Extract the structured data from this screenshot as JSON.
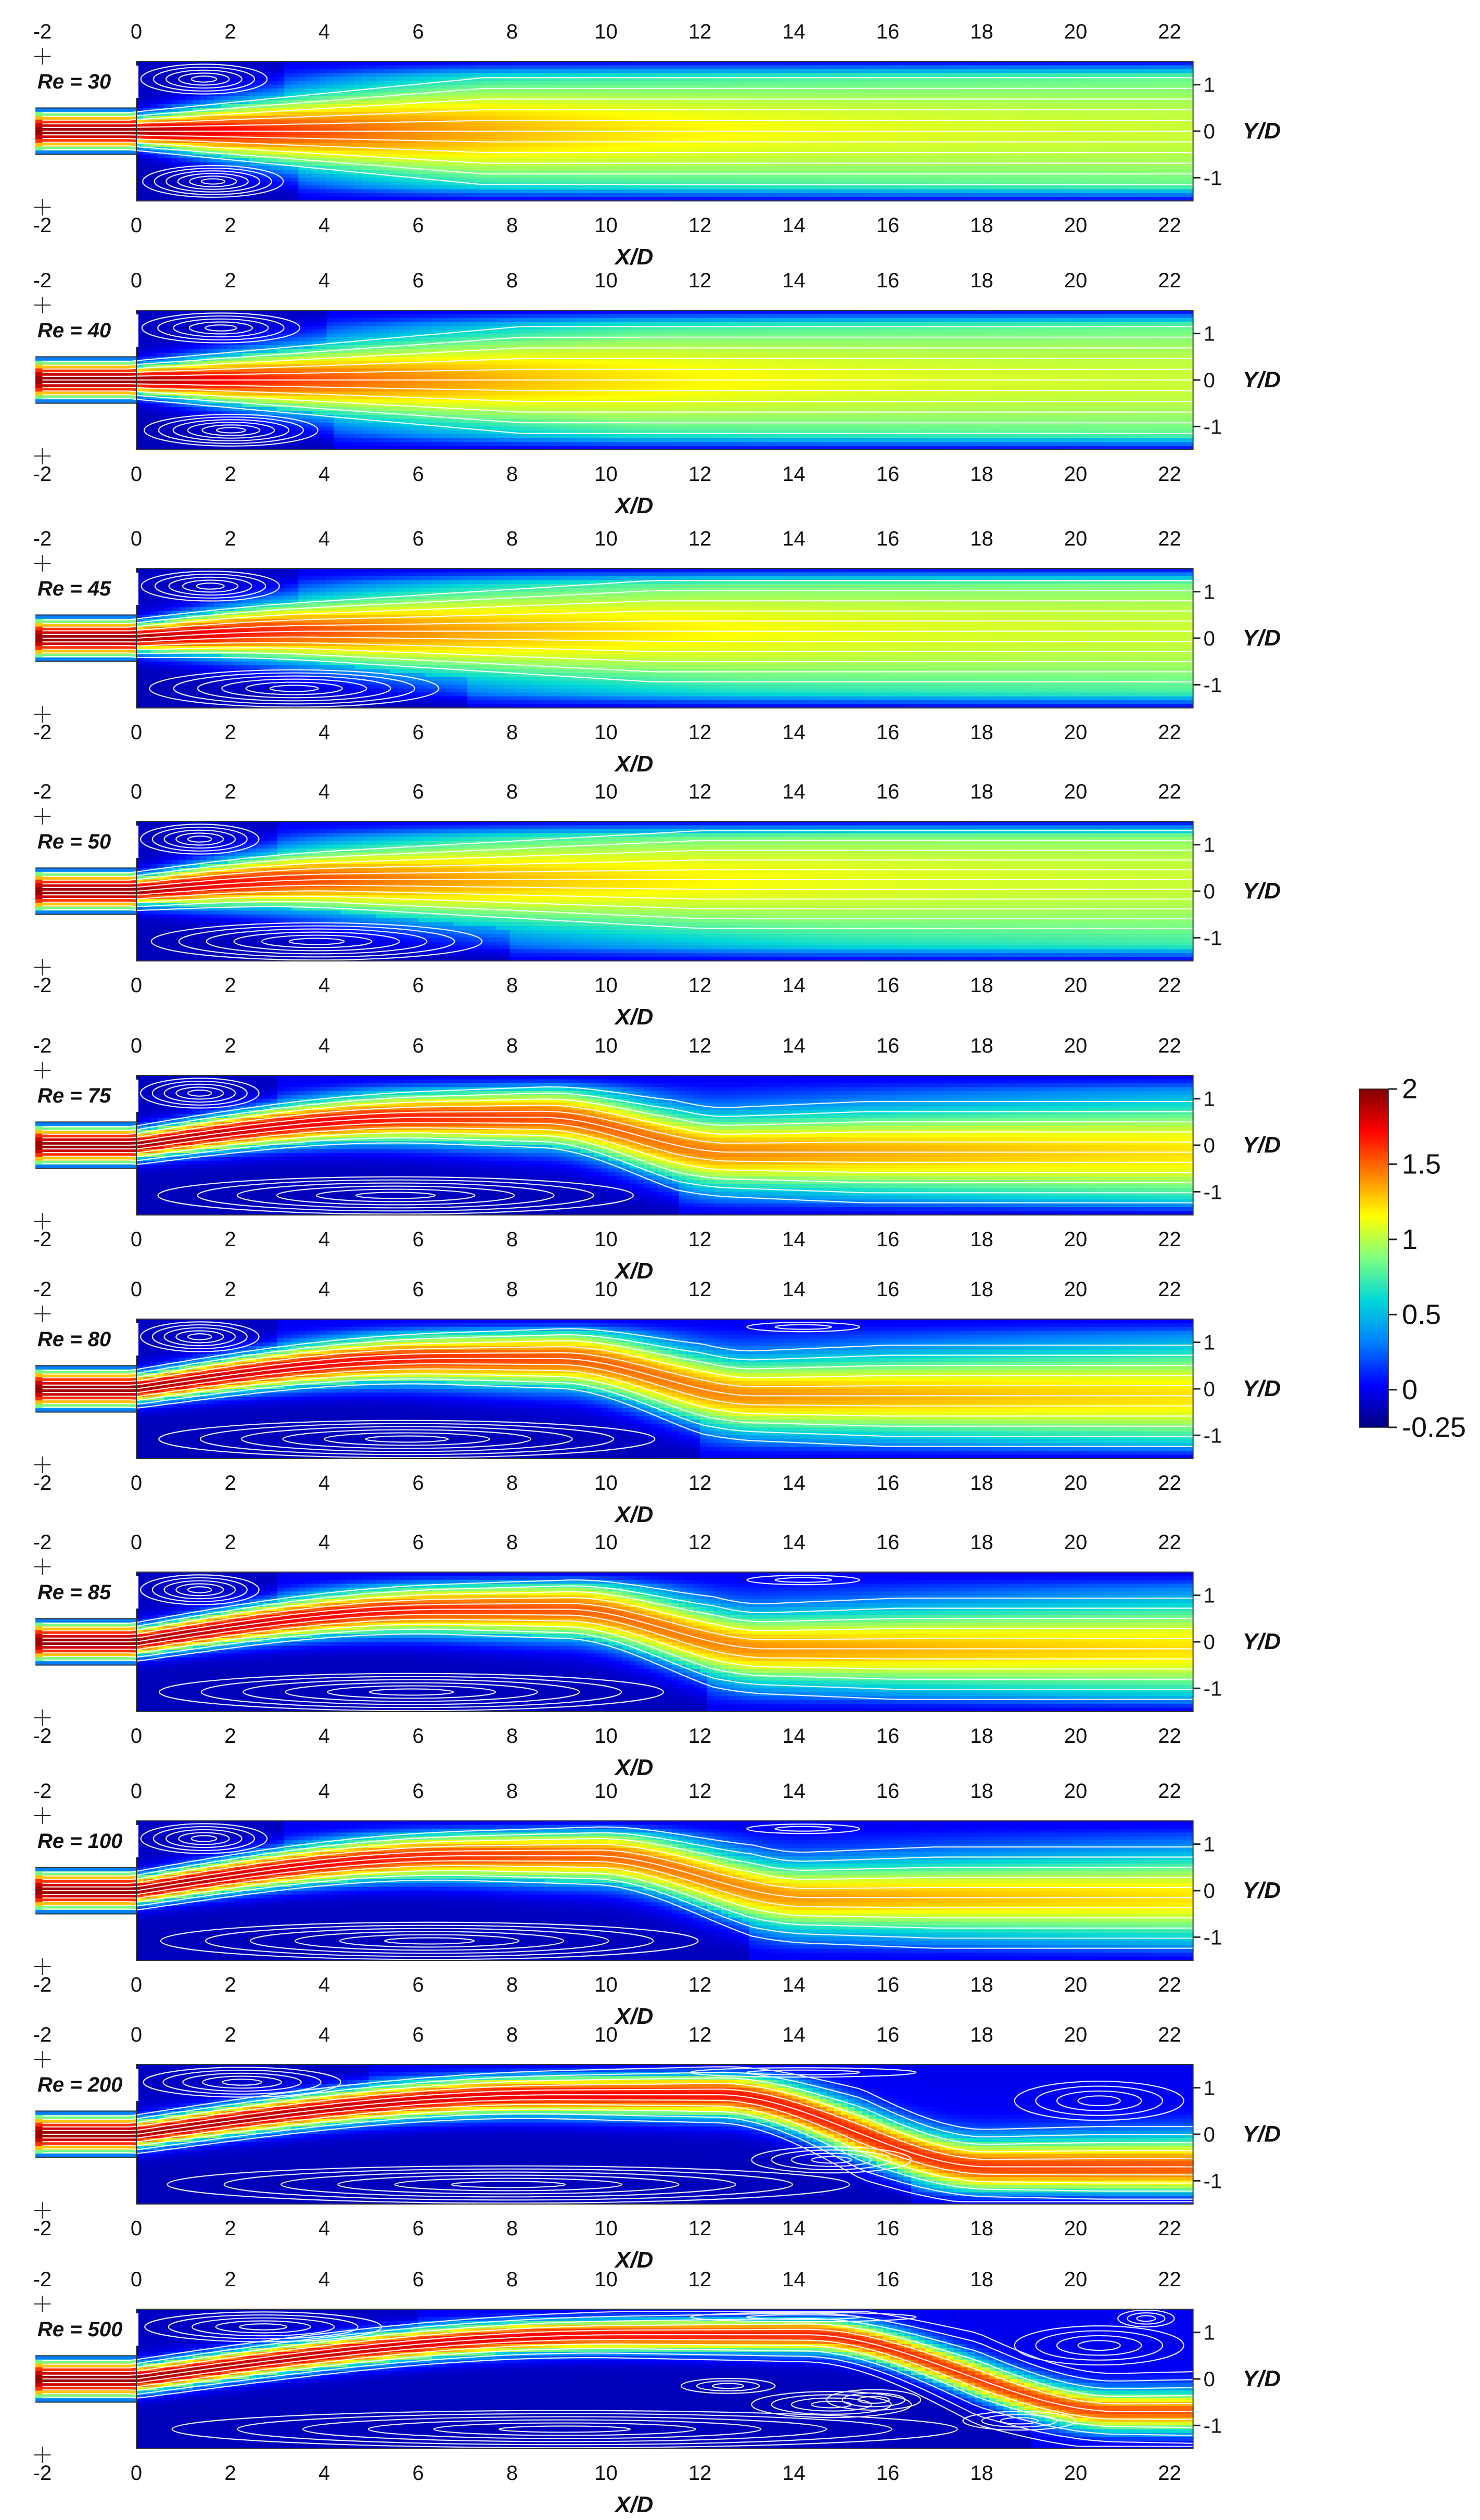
{
  "chart_data": {
    "type": "heatmap",
    "title": "",
    "description_quantity": "streamwise velocity contours with streamlines",
    "xlabel": "X/D",
    "ylabel": "Y/D",
    "x_range": [
      -2,
      22.5
    ],
    "x_ticks": [
      -2,
      0,
      2,
      4,
      6,
      8,
      10,
      12,
      14,
      16,
      18,
      20,
      22
    ],
    "x_tick_labels": [
      "-2",
      "0",
      "2",
      "4",
      "6",
      "8",
      "10",
      "12",
      "14",
      "16",
      "18",
      "20",
      "22"
    ],
    "y_range": [
      -1.5,
      1.5
    ],
    "inlet_range": [
      -0.5,
      0.5
    ],
    "y_ticks": [
      1,
      0,
      -1
    ],
    "y_tick_labels": [
      "1",
      "0",
      "-1"
    ],
    "colorbar": {
      "min": -0.25,
      "max": 2,
      "ticks": [
        2,
        1.5,
        1,
        0.5,
        0,
        -0.25
      ],
      "tick_labels": [
        "2",
        "1.5",
        "1",
        "0.5",
        "0",
        "-0.25"
      ],
      "colormap": [
        "#00007f",
        "#0000ff",
        "#007fff",
        "#00d8d8",
        "#7fff7f",
        "#ffff00",
        "#ff7f00",
        "#ff0000",
        "#7f0000"
      ]
    },
    "panels": [
      {
        "label": "Re = 30",
        "Re": 30,
        "jet_peak": 1.5,
        "top_recirculation_end": 3.2,
        "bottom_recirculation_end": 3.4,
        "jet_deflection": 0.0
      },
      {
        "label": "Re = 40",
        "Re": 40,
        "jet_peak": 1.5,
        "top_recirculation_end": 4.0,
        "bottom_recirculation_end": 4.2,
        "jet_deflection": 0.0
      },
      {
        "label": "Re = 45",
        "Re": 45,
        "jet_peak": 1.5,
        "top_recirculation_end": 3.5,
        "bottom_recirculation_end": 7.0,
        "jet_deflection": 0.15
      },
      {
        "label": "Re = 50",
        "Re": 50,
        "jet_peak": 1.5,
        "top_recirculation_end": 3.0,
        "bottom_recirculation_end": 8.0,
        "jet_deflection": 0.25
      },
      {
        "label": "Re = 75",
        "Re": 75,
        "jet_peak": 1.5,
        "top_recirculation_end": 3.0,
        "bottom_recirculation_end": 11.5,
        "jet_deflection": 0.6
      },
      {
        "label": "Re = 80",
        "Re": 80,
        "jet_peak": 1.5,
        "top_recirculation_end": 3.0,
        "bottom_recirculation_end": 12.0,
        "jet_deflection": 0.65
      },
      {
        "label": "Re = 85",
        "Re": 85,
        "jet_peak": 1.5,
        "top_recirculation_end": 3.0,
        "bottom_recirculation_end": 12.2,
        "jet_deflection": 0.7
      },
      {
        "label": "Re = 100",
        "Re": 100,
        "jet_peak": 1.5,
        "top_recirculation_end": 3.2,
        "bottom_recirculation_end": 13.0,
        "jet_deflection": 0.75
      },
      {
        "label": "Re = 200",
        "Re": 200,
        "jet_peak": 1.5,
        "top_recirculation_end": 5.0,
        "bottom_recirculation_end": 16.5,
        "jet_deflection": 0.85
      },
      {
        "label": "Re = 500",
        "Re": 500,
        "jet_peak": 1.5,
        "top_recirculation_end": 6.0,
        "bottom_recirculation_end": 19.0,
        "jet_deflection": 0.95
      }
    ]
  }
}
